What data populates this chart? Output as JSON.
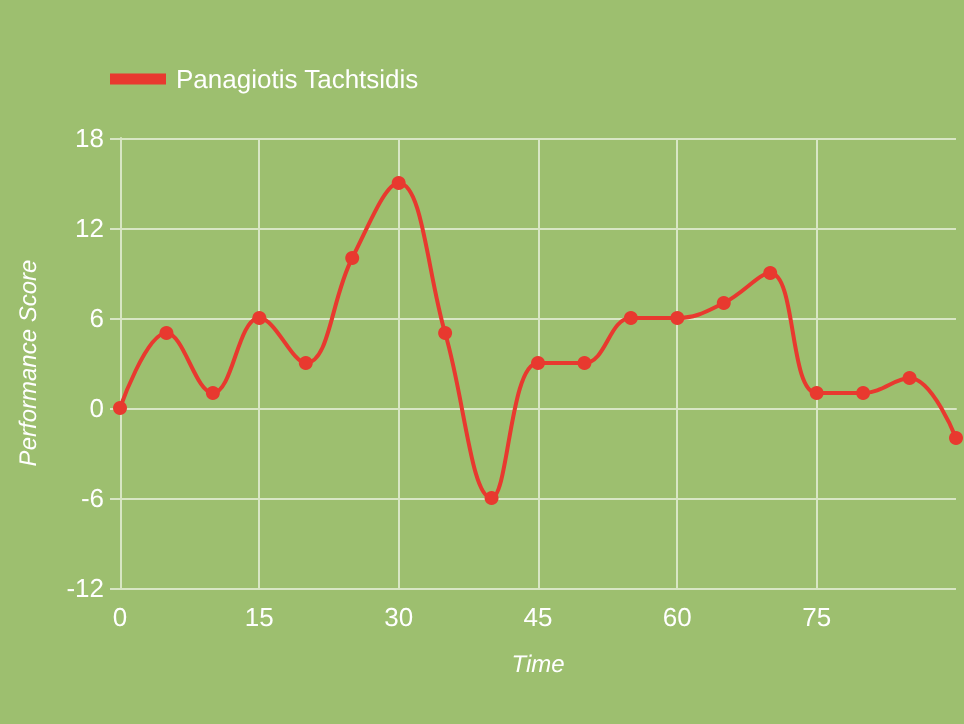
{
  "chart_data": {
    "type": "line",
    "xlabel": "Time",
    "ylabel": "Performance Score",
    "x": [
      0,
      5,
      10,
      15,
      20,
      25,
      30,
      35,
      40,
      45,
      50,
      55,
      60,
      65,
      70,
      75,
      80,
      85,
      90
    ],
    "series": [
      {
        "name": "Panagiotis Tachtsidis",
        "color": "#e8392f",
        "values": [
          0,
          5,
          1,
          6,
          3,
          10,
          15,
          5,
          -6,
          3,
          3,
          6,
          6,
          7,
          9,
          1,
          1,
          2,
          -2
        ]
      }
    ],
    "xlim": [
      0,
      90
    ],
    "xticks": [
      0,
      15,
      30,
      45,
      60,
      75
    ],
    "ylim": [
      -12,
      18
    ],
    "yticks": [
      -12,
      -6,
      0,
      6,
      12,
      18
    ],
    "grid": true,
    "legend": "top left",
    "marker": "circle",
    "line_style": "solid"
  }
}
